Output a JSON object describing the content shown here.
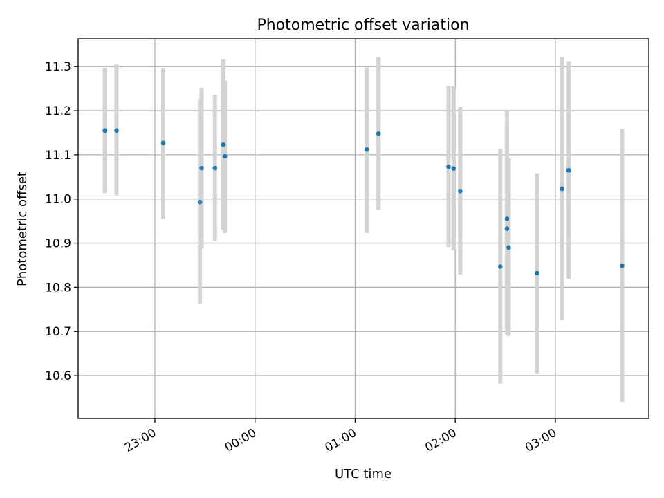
{
  "chart_data": {
    "type": "scatter",
    "title": "Photometric offset variation",
    "xlabel": "UTC time",
    "ylabel": "Photometric offset",
    "x_axis": {
      "kind": "time",
      "range": [
        "22:14",
        "03:56"
      ],
      "ticks": [
        "23:00",
        "00:00",
        "01:00",
        "02:00",
        "03:00"
      ],
      "tick_label_rotation_deg": 30
    },
    "y_axis": {
      "range": [
        10.503,
        11.363
      ],
      "ticks": [
        10.6,
        10.7,
        10.8,
        10.9,
        11.0,
        11.1,
        11.2,
        11.3
      ],
      "tick_labels": [
        "10.6",
        "10.7",
        "10.8",
        "10.9",
        "11.0",
        "11.1",
        "11.2",
        "11.3"
      ]
    },
    "grid": true,
    "legend": "none",
    "colors": {
      "point": "#1f77b4",
      "error_bar": "#d3d3d3",
      "grid": "#b0b0b0"
    },
    "points": [
      {
        "x": "22:30",
        "y": 11.155,
        "ylow": 11.013,
        "yhigh": 11.297
      },
      {
        "x": "22:37",
        "y": 11.155,
        "ylow": 11.008,
        "yhigh": 11.305
      },
      {
        "x": "23:05",
        "y": 11.127,
        "ylow": 10.955,
        "yhigh": 11.296
      },
      {
        "x": "23:27",
        "y": 10.993,
        "ylow": 10.762,
        "yhigh": 11.227
      },
      {
        "x": "23:28",
        "y": 11.07,
        "ylow": 10.888,
        "yhigh": 11.252
      },
      {
        "x": "23:36",
        "y": 11.07,
        "ylow": 10.905,
        "yhigh": 11.236
      },
      {
        "x": "23:41",
        "y": 11.123,
        "ylow": 10.93,
        "yhigh": 11.316
      },
      {
        "x": "23:42",
        "y": 11.097,
        "ylow": 10.923,
        "yhigh": 11.268
      },
      {
        "x": "01:07",
        "y": 11.112,
        "ylow": 10.923,
        "yhigh": 11.298
      },
      {
        "x": "01:14",
        "y": 11.148,
        "ylow": 10.975,
        "yhigh": 11.321
      },
      {
        "x": "01:56",
        "y": 11.073,
        "ylow": 10.891,
        "yhigh": 11.256
      },
      {
        "x": "01:59",
        "y": 11.069,
        "ylow": 10.884,
        "yhigh": 11.255
      },
      {
        "x": "02:03",
        "y": 11.018,
        "ylow": 10.829,
        "yhigh": 11.209
      },
      {
        "x": "02:27",
        "y": 10.847,
        "ylow": 10.582,
        "yhigh": 11.114
      },
      {
        "x": "02:31",
        "y": 10.955,
        "ylow": 10.712,
        "yhigh": 11.199
      },
      {
        "x": "02:31",
        "y": 10.933,
        "ylow": 10.693,
        "yhigh": 11.173
      },
      {
        "x": "02:32",
        "y": 10.89,
        "ylow": 10.69,
        "yhigh": 11.092
      },
      {
        "x": "02:49",
        "y": 10.832,
        "ylow": 10.605,
        "yhigh": 11.058
      },
      {
        "x": "03:04",
        "y": 11.023,
        "ylow": 10.726,
        "yhigh": 11.321
      },
      {
        "x": "03:08",
        "y": 11.065,
        "ylow": 10.819,
        "yhigh": 11.312
      },
      {
        "x": "03:40",
        "y": 10.849,
        "ylow": 10.541,
        "yhigh": 11.159
      }
    ]
  }
}
